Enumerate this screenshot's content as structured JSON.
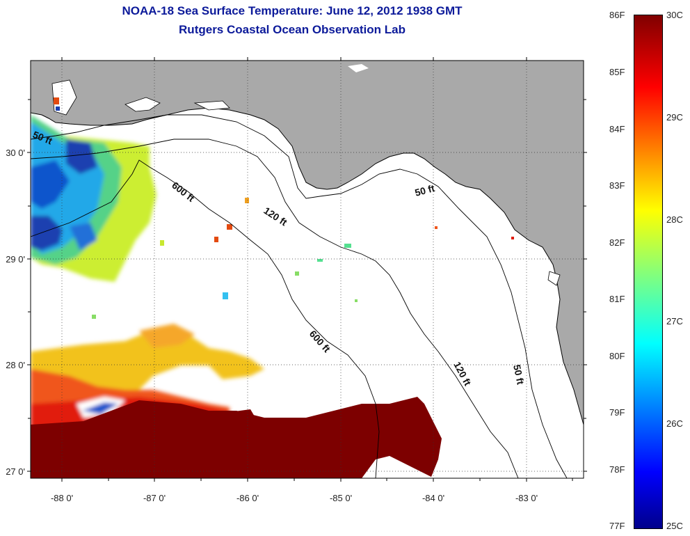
{
  "title_line1": "NOAA-18 Sea Surface Temperature:  June 12, 2012 1938 GMT",
  "title_line2": "Rutgers Coastal Ocean Observation Lab",
  "longitude_labels": [
    "-88 0'",
    "-87 0'",
    "-86 0'",
    "-85 0'",
    "-84 0'",
    "-83 0'"
  ],
  "latitude_labels": [
    "30 0'",
    "29 0'",
    "28 0'",
    "27 0'"
  ],
  "isobath_labels": [
    "50 ft",
    "600 ft",
    "120 ft",
    "50 ft",
    "600 ft",
    "120 ft",
    "50 ft"
  ],
  "colorbar": {
    "fahrenheit_labels": [
      "86F",
      "85F",
      "84F",
      "83F",
      "82F",
      "81F",
      "80F",
      "79F",
      "78F",
      "77F"
    ],
    "celsius_labels": [
      "30C",
      "29C",
      "28C",
      "27C",
      "26C",
      "25C"
    ]
  },
  "colors": {
    "land": "#a9a9a9",
    "ocean_no_data": "#ffffff",
    "title": "#0c1a9a",
    "cold": "#00008b",
    "warm": "#800000"
  }
}
